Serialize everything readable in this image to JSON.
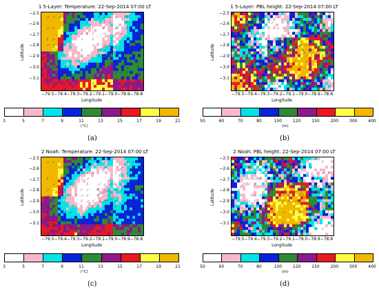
{
  "colors": {
    "temperature": [
      "#ffffff",
      "#f6b9cb",
      "#00e5e5",
      "#0a22d8",
      "#2f8a35",
      "#8b1a8a",
      "#e81922",
      "#ffff45",
      "#f2b800"
    ],
    "pbl": [
      "#ffffff",
      "#f6b9cb",
      "#00e5e5",
      "#0a22d8",
      "#2f8a35",
      "#8b1a8a",
      "#e81922",
      "#ffff45",
      "#f2b800"
    ]
  },
  "panels": [
    {
      "title": "1 5-Layer: Temperature. 22-Sep-2014 07:00 LT",
      "ylabel": "Latitude",
      "xlabel": "Longitude",
      "yticks": [
        "−2.5",
        "−2.6",
        "−2.7",
        "−2.8",
        "−2.9",
        "−3.0",
        "−3.1"
      ],
      "xticks": "−79.5−79.4−79.3−79.2−79.1−79.0−78.9−78.8",
      "cbar_ticks": [
        "3",
        "5",
        "7",
        "9",
        "11",
        "13",
        "15",
        "17",
        "19",
        "21"
      ],
      "cbar_unit": "(°C)",
      "label": "(a)",
      "variable": "temperature"
    },
    {
      "title": "1 5-Layer: PBL height. 22-Sep-2014 07:00 LT",
      "ylabel": "Latitude",
      "xlabel": "Longitude",
      "yticks": [
        "−2.5",
        "−2.6",
        "−2.7",
        "−2.8",
        "−2.9",
        "−3.0",
        "−3.1"
      ],
      "xticks": "−79.5−79.4−79.3−79.2−79.1−79.0−78.9−78.8",
      "cbar_ticks": [
        "50",
        "60",
        "70",
        "80",
        "100",
        "120",
        "150",
        "200",
        "300",
        "400"
      ],
      "cbar_unit": "(m)",
      "label": "(b)",
      "variable": "pbl"
    },
    {
      "title": "2 Noah: Temperature. 22-Sep-2014 07:00 LT",
      "ylabel": "Latitude",
      "xlabel": "Longitude",
      "yticks": [
        "−2.5",
        "−2.6",
        "−2.7",
        "−2.8",
        "−2.9",
        "−3.0",
        "−3.1"
      ],
      "xticks": "−79.5−79.4−79.3−79.2−79.1−79.0−78.9−78.8",
      "cbar_ticks": [
        "3",
        "5",
        "7",
        "9",
        "11",
        "13",
        "15",
        "17",
        "19",
        "21"
      ],
      "cbar_unit": "(°C)",
      "label": "(c)",
      "variable": "temperature"
    },
    {
      "title": "2 Noah: PBL height. 22-Sep-2014 07:00 LT",
      "ylabel": "Latitude",
      "xlabel": "Longitude",
      "yticks": [
        "−2.5",
        "−2.6",
        "−2.7",
        "−2.8",
        "−2.9",
        "−3.0",
        "−3.1"
      ],
      "xticks": "−79.5−79.4−79.3−79.2−79.1−79.0−78.9−78.8",
      "cbar_ticks": [
        "50",
        "60",
        "70",
        "80",
        "100",
        "120",
        "150",
        "200",
        "300",
        "400"
      ],
      "cbar_unit": "(m)",
      "label": "(d)",
      "variable": "pbl"
    }
  ]
}
